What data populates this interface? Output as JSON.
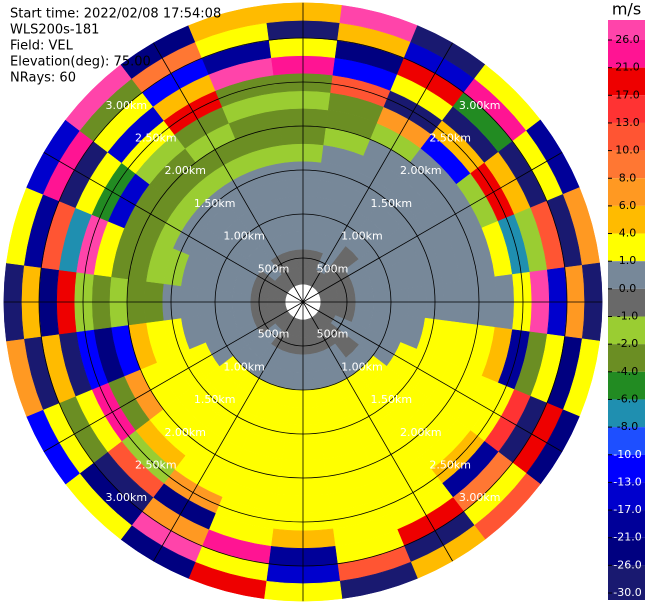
{
  "chart_data": {
    "type": "ppi",
    "title_lines": [
      "Start time: 2022/02/08 17:54:08",
      "WLS200s-181",
      "Field: VEL",
      "Elevation(deg): 75.00",
      "NRays: 60"
    ],
    "colorbar": {
      "label": "m/s",
      "ticks": [
        {
          "value": 26,
          "label": "26.0"
        },
        {
          "value": 21,
          "label": "21.0"
        },
        {
          "value": 17,
          "label": "17.0"
        },
        {
          "value": 13,
          "label": "13.0"
        },
        {
          "value": 10,
          "label": "10.0"
        },
        {
          "value": 8,
          "label": "8.0"
        },
        {
          "value": 6,
          "label": "6.0"
        },
        {
          "value": 4,
          "label": "4.0"
        },
        {
          "value": 1,
          "label": "1.0"
        },
        {
          "value": 0,
          "label": "0.0"
        },
        {
          "value": -1,
          "label": "-1.0"
        },
        {
          "value": -2,
          "label": "-2.0"
        },
        {
          "value": -4,
          "label": "-4.0"
        },
        {
          "value": -6,
          "label": "-6.0"
        },
        {
          "value": -8,
          "label": "-8.0"
        },
        {
          "value": -10,
          "label": "-10.0"
        },
        {
          "value": -13,
          "label": "-13.0"
        },
        {
          "value": -17,
          "label": "-17.0"
        },
        {
          "value": -21,
          "label": "-21.0"
        },
        {
          "value": -26,
          "label": "-26.0"
        },
        {
          "value": -30,
          "label": "-30.0"
        }
      ],
      "colors": [
        "#ff44aa",
        "#ff1493",
        "#ee0000",
        "#ff3333",
        "#ff5533",
        "#ff7733",
        "#ff9922",
        "#ffbb00",
        "#ffff00",
        "#778899",
        "#696969",
        "#9acd32",
        "#6b8e23",
        "#228b22",
        "#1f8fb0",
        "#1e4fff",
        "#0000ff",
        "#0000cd",
        "#000099",
        "#000080",
        "#191970"
      ]
    },
    "range_rings": [
      {
        "value": 0.5,
        "label": "500m"
      },
      {
        "value": 1.0,
        "label": "1.00km"
      },
      {
        "value": 1.5,
        "label": "1.50km"
      },
      {
        "value": 2.0,
        "label": "2.00km"
      },
      {
        "value": 2.5,
        "label": "2.50km"
      },
      {
        "value": 3.0,
        "label": "3.00km"
      }
    ],
    "azimuths": [
      0,
      15,
      30,
      45,
      60,
      75,
      90,
      105,
      120,
      135,
      150,
      165,
      180,
      195,
      210,
      225,
      240,
      255,
      270,
      285,
      300,
      315,
      330,
      345
    ],
    "ranges": [
      0.3,
      0.5,
      0.7,
      0.9,
      1.1,
      1.3,
      1.5,
      1.7,
      1.9,
      2.1,
      2.3,
      2.5,
      2.7,
      2.9,
      3.1,
      3.3
    ],
    "values": [
      [
        -0.5,
        -0.5,
        -0.5,
        -0.5,
        -0.5,
        -0.5,
        -0.5,
        -0.5,
        -0.5,
        -0.5,
        -0.5,
        -0.5,
        -0.5,
        -0.5,
        -0.5,
        -0.5,
        -0.5,
        -0.5,
        -0.5,
        -0.5,
        -0.5,
        -0.5,
        -0.5,
        -0.5
      ],
      [
        -0.5,
        -0.5,
        0.5,
        -0.5,
        -0.5,
        -0.5,
        -0.5,
        -0.5,
        0.5,
        -0.5,
        -0.5,
        -0.5,
        -0.5,
        -0.5,
        -0.5,
        0.5,
        -0.5,
        -0.5,
        -0.5,
        -0.5,
        -0.5,
        0.5,
        -0.5,
        -0.5
      ],
      [
        0.5,
        0.5,
        0.5,
        -0.5,
        0.5,
        0.5,
        0.5,
        0.5,
        0.5,
        -0.5,
        0.5,
        0.5,
        0.5,
        0.5,
        0.5,
        0.5,
        0.5,
        0.5,
        0.5,
        0.5,
        0.5,
        0.5,
        0.5,
        0.5
      ],
      [
        0.5,
        0.5,
        0.5,
        0.5,
        0.5,
        0.5,
        0.5,
        0.5,
        0.5,
        0.5,
        0.5,
        0.5,
        0.5,
        0.5,
        0.5,
        0.5,
        0.5,
        0.5,
        0.5,
        0.5,
        0.5,
        0.5,
        0.5,
        0.5
      ],
      [
        0.5,
        0.5,
        0.5,
        0.5,
        0.5,
        0.5,
        0.5,
        0.5,
        0.5,
        3,
        3,
        3,
        3,
        3,
        3,
        3,
        0.5,
        0.5,
        0.5,
        0.5,
        0.5,
        0.5,
        0.5,
        0.5
      ],
      [
        0.5,
        0.5,
        0.5,
        0.5,
        0.5,
        0.5,
        0.5,
        0.5,
        3,
        3,
        3,
        3,
        3,
        3,
        3,
        3,
        3,
        0.5,
        0.5,
        0.5,
        0.5,
        0.5,
        0.5,
        0.5
      ],
      [
        0.5,
        0.5,
        0.5,
        0.5,
        0.5,
        0.5,
        0.5,
        3,
        3,
        3,
        3,
        3,
        3,
        3,
        3,
        3,
        3,
        3,
        0.5,
        -1.5,
        0.5,
        0.5,
        0.5,
        0.5
      ],
      [
        -1.5,
        0.5,
        0.5,
        0.5,
        0.5,
        0.5,
        0.5,
        3,
        3,
        3,
        3,
        3,
        3,
        3,
        3,
        3,
        3,
        3,
        -3,
        -1.5,
        -1.5,
        -1.5,
        -1.5,
        -1.5
      ],
      [
        -3,
        -1.5,
        0.5,
        0.5,
        0.5,
        0.5,
        0.5,
        3,
        3,
        3,
        3,
        3,
        3,
        3,
        3,
        3,
        3,
        5,
        -3,
        -3,
        -3,
        -3,
        -3,
        -3
      ],
      [
        -3,
        -3,
        -1.5,
        0.5,
        0.5,
        0.5,
        0.5,
        3,
        3,
        3,
        3,
        3,
        3,
        3,
        3,
        3,
        7,
        -11,
        -1.5,
        -3,
        -3,
        -3,
        -1.5,
        -3
      ],
      [
        -1.5,
        -3,
        7,
        -11,
        -1.5,
        3,
        0.5,
        5,
        3,
        3,
        3,
        3,
        3,
        3,
        3,
        5,
        -3,
        -23,
        -3,
        3,
        -15,
        -1.5,
        -3,
        -1.5
      ],
      [
        -3,
        11,
        -28,
        5,
        19,
        -7,
        3,
        -19,
        3,
        5,
        3,
        3,
        3,
        3,
        7,
        -1.5,
        23,
        -11,
        -1.5,
        28,
        -5,
        3,
        19,
        -3
      ],
      [
        23,
        -11,
        3,
        -28,
        5,
        -1.5,
        28,
        -3,
        15,
        -19,
        3,
        3,
        5,
        3,
        -23,
        11,
        3,
        -28,
        19,
        -7,
        3,
        -15,
        5,
        28
      ],
      [
        3,
        -23,
        19,
        -5,
        -28,
        11,
        -15,
        3,
        -28,
        9,
        19,
        3,
        -19,
        23,
        7,
        -28,
        -3,
        5,
        -23,
        11,
        -28,
        3,
        -11,
        -19
      ],
      [
        -28,
        5,
        -15,
        23,
        3,
        -28,
        7,
        -23,
        19,
        3,
        -28,
        11,
        -15,
        3,
        28,
        -23,
        3,
        -28,
        5,
        -19,
        23,
        -3,
        9,
        3
      ],
      [
        5,
        28,
        -28,
        3,
        -19,
        7,
        -28,
        3,
        -23,
        11,
        5,
        -28,
        3,
        19,
        -23,
        3,
        -11,
        7,
        -28,
        3,
        -15,
        28,
        -23,
        5
      ]
    ]
  }
}
